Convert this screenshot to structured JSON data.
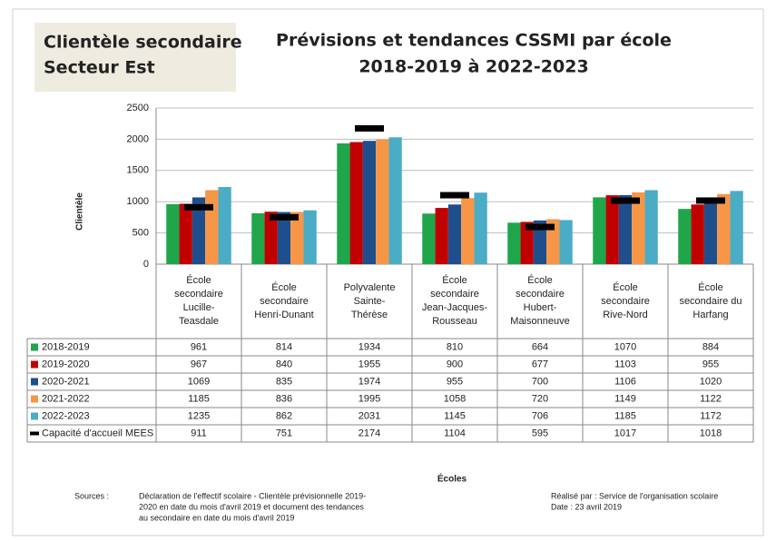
{
  "chart_data": {
    "type": "bar",
    "box_title": [
      "Clientèle secondaire",
      "Secteur Est"
    ],
    "title": "Prévisions et tendances CSSMI par école",
    "subtitle": "2018-2019 à 2022-2023",
    "y_label": "Clientèle",
    "x_label": "Écoles",
    "categories": [
      "École secondaire Lucille-Teasdale",
      "École secondaire Henri-Dunant",
      "Polyvalente Sainte-Thérèse",
      "École secondaire Jean-Jacques-Rousseau",
      "École secondaire Hubert-Maisonneuve",
      "École secondaire Rive-Nord",
      "École secondaire du Harfang"
    ],
    "series": [
      {
        "name": "2018-2019",
        "color": "#1fa64b",
        "kind": "bar",
        "values": [
          961,
          814,
          1934,
          810,
          664,
          1070,
          884
        ]
      },
      {
        "name": "2019-2020",
        "color": "#c00000",
        "kind": "bar",
        "values": [
          967,
          840,
          1955,
          900,
          677,
          1103,
          955
        ]
      },
      {
        "name": "2020-2021",
        "color": "#1f4e8c",
        "kind": "bar",
        "values": [
          1069,
          835,
          1974,
          955,
          700,
          1106,
          1020
        ]
      },
      {
        "name": "2021-2022",
        "color": "#f79646",
        "kind": "bar",
        "values": [
          1185,
          836,
          1995,
          1058,
          720,
          1149,
          1122
        ]
      },
      {
        "name": "2022-2023",
        "color": "#4bacc6",
        "kind": "bar",
        "values": [
          1235,
          862,
          2031,
          1145,
          706,
          1185,
          1172
        ]
      },
      {
        "name": "Capacité d'accueil MEES",
        "color": "#000000",
        "kind": "dash",
        "values": [
          911,
          751,
          2174,
          1104,
          595,
          1017,
          1018
        ]
      }
    ],
    "ylim": [
      0,
      2500
    ],
    "yticks": [
      0,
      500,
      1000,
      1500,
      2000,
      2500
    ],
    "grid": true,
    "sources_label": "Sources :",
    "sources_text": [
      "Déclaration de l'effectif scolaire - Clientèle prévisionnelle 2019-",
      "2020 en date du mois d'avril 2019 et document des tendances",
      "au secondaire en date du mois d'avril 2019"
    ],
    "credit": [
      "Réalisé par : Service de l'organisation scolaire",
      "Date : 23 avril 2019"
    ]
  }
}
